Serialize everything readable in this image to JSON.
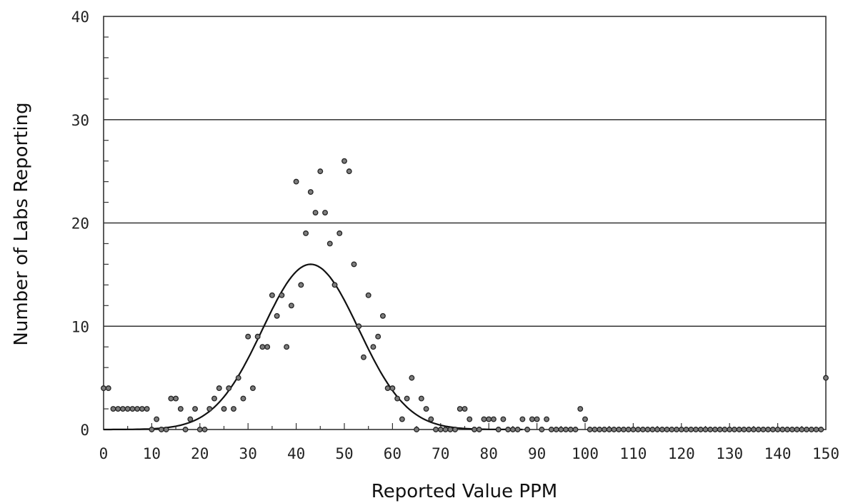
{
  "chart_data": {
    "type": "scatter",
    "title": "",
    "xlabel": "Reported Value PPM",
    "ylabel": "Number of Labs Reporting",
    "xlim": [
      0,
      150
    ],
    "ylim": [
      0,
      40
    ],
    "x_ticks": [
      0,
      10,
      20,
      30,
      40,
      50,
      60,
      70,
      80,
      90,
      100,
      110,
      120,
      130,
      140,
      150
    ],
    "x_tick_labels": [
      "0",
      "10",
      "20",
      "30",
      "40",
      "50",
      "60",
      "70",
      "80",
      "90",
      "100",
      "110",
      "120",
      "130",
      "140",
      "150"
    ],
    "y_ticks": [
      0,
      10,
      20,
      30,
      40
    ],
    "y_tick_labels": [
      "0",
      "10",
      "20",
      "30",
      "40"
    ],
    "grid": "horizontal at 10, 20, 30",
    "legend": "none",
    "series": [
      {
        "kind": "scatter",
        "points": [
          [
            0,
            4
          ],
          [
            1,
            4
          ],
          [
            2,
            2
          ],
          [
            3,
            2
          ],
          [
            4,
            2
          ],
          [
            5,
            2
          ],
          [
            6,
            2
          ],
          [
            7,
            2
          ],
          [
            8,
            2
          ],
          [
            9,
            2
          ],
          [
            10,
            0
          ],
          [
            11,
            1
          ],
          [
            12,
            0
          ],
          [
            13,
            0
          ],
          [
            14,
            3
          ],
          [
            15,
            3
          ],
          [
            16,
            2
          ],
          [
            17,
            0
          ],
          [
            18,
            1
          ],
          [
            19,
            2
          ],
          [
            20,
            0
          ],
          [
            21,
            0
          ],
          [
            22,
            2
          ],
          [
            23,
            3
          ],
          [
            24,
            4
          ],
          [
            25,
            2
          ],
          [
            26,
            4
          ],
          [
            27,
            2
          ],
          [
            28,
            5
          ],
          [
            29,
            3
          ],
          [
            30,
            9
          ],
          [
            31,
            4
          ],
          [
            32,
            9
          ],
          [
            33,
            8
          ],
          [
            34,
            8
          ],
          [
            35,
            13
          ],
          [
            36,
            11
          ],
          [
            37,
            13
          ],
          [
            38,
            8
          ],
          [
            39,
            12
          ],
          [
            40,
            24
          ],
          [
            41,
            14
          ],
          [
            42,
            19
          ],
          [
            43,
            23
          ],
          [
            44,
            21
          ],
          [
            45,
            25
          ],
          [
            46,
            21
          ],
          [
            47,
            18
          ],
          [
            48,
            14
          ],
          [
            49,
            19
          ],
          [
            50,
            26
          ],
          [
            51,
            25
          ],
          [
            52,
            16
          ],
          [
            53,
            10
          ],
          [
            54,
            7
          ],
          [
            55,
            13
          ],
          [
            56,
            8
          ],
          [
            57,
            9
          ],
          [
            58,
            11
          ],
          [
            59,
            4
          ],
          [
            60,
            4
          ],
          [
            61,
            3
          ],
          [
            62,
            1
          ],
          [
            63,
            3
          ],
          [
            64,
            5
          ],
          [
            65,
            0
          ],
          [
            66,
            3
          ],
          [
            67,
            2
          ],
          [
            68,
            1
          ],
          [
            69,
            0
          ],
          [
            70,
            0
          ],
          [
            71,
            0
          ],
          [
            72,
            0
          ],
          [
            73,
            0
          ],
          [
            74,
            2
          ],
          [
            75,
            2
          ],
          [
            76,
            1
          ],
          [
            77,
            0
          ],
          [
            78,
            0
          ],
          [
            79,
            1
          ],
          [
            80,
            1
          ],
          [
            81,
            1
          ],
          [
            82,
            0
          ],
          [
            83,
            1
          ],
          [
            84,
            0
          ],
          [
            85,
            0
          ],
          [
            86,
            0
          ],
          [
            87,
            1
          ],
          [
            88,
            0
          ],
          [
            89,
            1
          ],
          [
            90,
            1
          ],
          [
            91,
            0
          ],
          [
            92,
            1
          ],
          [
            93,
            0
          ],
          [
            94,
            0
          ],
          [
            95,
            0
          ],
          [
            96,
            0
          ],
          [
            97,
            0
          ],
          [
            98,
            0
          ],
          [
            99,
            2
          ],
          [
            100,
            1
          ],
          [
            101,
            0
          ],
          [
            102,
            0
          ],
          [
            103,
            0
          ],
          [
            104,
            0
          ],
          [
            105,
            0
          ],
          [
            106,
            0
          ],
          [
            107,
            0
          ],
          [
            108,
            0
          ],
          [
            109,
            0
          ],
          [
            110,
            0
          ],
          [
            111,
            0
          ],
          [
            112,
            0
          ],
          [
            113,
            0
          ],
          [
            114,
            0
          ],
          [
            115,
            0
          ],
          [
            116,
            0
          ],
          [
            117,
            0
          ],
          [
            118,
            0
          ],
          [
            119,
            0
          ],
          [
            120,
            0
          ],
          [
            121,
            0
          ],
          [
            122,
            0
          ],
          [
            123,
            0
          ],
          [
            124,
            0
          ],
          [
            125,
            0
          ],
          [
            126,
            0
          ],
          [
            127,
            0
          ],
          [
            128,
            0
          ],
          [
            129,
            0
          ],
          [
            130,
            0
          ],
          [
            131,
            0
          ],
          [
            132,
            0
          ],
          [
            133,
            0
          ],
          [
            134,
            0
          ],
          [
            135,
            0
          ],
          [
            136,
            0
          ],
          [
            137,
            0
          ],
          [
            138,
            0
          ],
          [
            139,
            0
          ],
          [
            140,
            0
          ],
          [
            141,
            0
          ],
          [
            142,
            0
          ],
          [
            143,
            0
          ],
          [
            144,
            0
          ],
          [
            145,
            0
          ],
          [
            146,
            0
          ],
          [
            147,
            0
          ],
          [
            148,
            0
          ],
          [
            149,
            0
          ],
          [
            150,
            5
          ]
        ]
      },
      {
        "kind": "fitted normal curve",
        "mean": 43,
        "sd": 10,
        "peak": 16,
        "x_range": [
          0,
          87
        ]
      }
    ]
  },
  "colors": {
    "background": "#ffffff",
    "axis": "#333333",
    "grid": "#333333",
    "curve": "#111111",
    "marker": "#222222"
  }
}
